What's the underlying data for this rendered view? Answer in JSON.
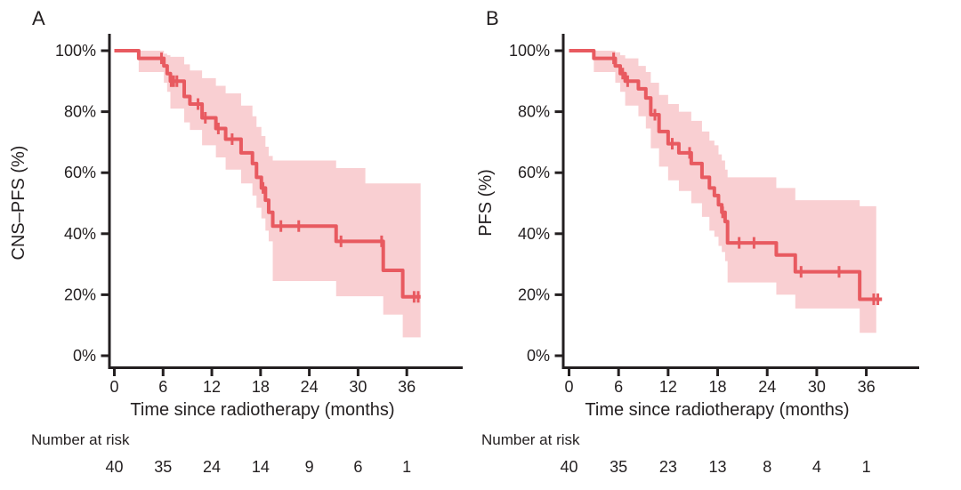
{
  "colors": {
    "curve": "#e85a60",
    "confidence_band": "#f9cfd2",
    "axis": "#231f20",
    "text": "#231f20",
    "background": "#ffffff"
  },
  "chart_data": [
    {
      "type": "line",
      "subtype": "kaplan-meier-step",
      "panel_label": "A",
      "xlabel": "Time since radiotherapy (months)",
      "ylabel": "CNS–PFS (%)",
      "xlim": [
        0,
        39
      ],
      "ylim": [
        0,
        100
      ],
      "x_ticks": [
        0,
        6,
        12,
        18,
        24,
        30,
        36
      ],
      "y_ticks": [
        100,
        80,
        60,
        40,
        20,
        0
      ],
      "y_tick_labels": [
        "100%",
        "80%",
        "60%",
        "40%",
        "20%",
        "0%"
      ],
      "grid": false,
      "legend": "none",
      "series": [
        {
          "name": "CNS-PFS",
          "color": "#e85a60",
          "end_time": 37.7,
          "steps": [
            [
              0,
              100
            ],
            [
              3,
              97.5
            ],
            [
              6.1,
              95
            ],
            [
              6.5,
              92.5
            ],
            [
              6.9,
              90
            ],
            [
              8.6,
              85
            ],
            [
              9.3,
              82.5
            ],
            [
              10.8,
              78
            ],
            [
              12.5,
              74.5
            ],
            [
              13.7,
              71
            ],
            [
              15.6,
              66.5
            ],
            [
              17,
              63
            ],
            [
              17.5,
              58.5
            ],
            [
              18.1,
              55
            ],
            [
              18.6,
              51
            ],
            [
              19,
              47
            ],
            [
              19.5,
              42.5
            ],
            [
              27.3,
              37.5
            ],
            [
              33.1,
              28
            ],
            [
              35.5,
              19.3
            ]
          ],
          "censor_marks": [
            [
              5.8,
              97.5
            ],
            [
              7,
              90
            ],
            [
              7.3,
              90
            ],
            [
              7.7,
              90
            ],
            [
              10.3,
              82.5
            ],
            [
              11.2,
              78
            ],
            [
              12.8,
              74.5
            ],
            [
              14.5,
              71
            ],
            [
              18.3,
              55
            ],
            [
              20.5,
              42.5
            ],
            [
              22.7,
              42.5
            ],
            [
              27.9,
              37.5
            ],
            [
              32.9,
              37.5
            ],
            [
              36.9,
              19.3
            ],
            [
              37.4,
              19.3
            ]
          ]
        }
      ],
      "confidence_band": {
        "color": "#f9cfd2",
        "end_time": 37.7,
        "steps": [
          [
            3,
            100,
            93
          ],
          [
            6.1,
            99,
            89.5
          ],
          [
            6.5,
            98.5,
            86.5
          ],
          [
            6.9,
            98,
            81
          ],
          [
            8.6,
            95.5,
            76.5
          ],
          [
            9.3,
            93.5,
            74
          ],
          [
            10.8,
            91,
            69
          ],
          [
            12.5,
            88.5,
            65
          ],
          [
            13.7,
            86,
            61
          ],
          [
            15.6,
            82,
            56.5
          ],
          [
            17,
            78.5,
            52.5
          ],
          [
            17.5,
            75,
            48.5
          ],
          [
            18.1,
            72,
            45
          ],
          [
            18.6,
            68.5,
            41
          ],
          [
            19,
            65.5,
            37.5
          ],
          [
            19.5,
            64,
            24.5
          ],
          [
            27.3,
            61.5,
            19.5
          ],
          [
            30.9,
            56.5,
            19.5
          ],
          [
            33.1,
            56.5,
            13.5
          ],
          [
            35.5,
            56.5,
            6
          ]
        ]
      },
      "number_at_risk": {
        "label": "Number at risk",
        "times": [
          0,
          6,
          12,
          18,
          24,
          30,
          36
        ],
        "counts": [
          40,
          35,
          24,
          14,
          9,
          6,
          1
        ]
      }
    },
    {
      "type": "line",
      "subtype": "kaplan-meier-step",
      "panel_label": "B",
      "xlabel": "Time since radiotherapy (months)",
      "ylabel": "PFS (%)",
      "xlim": [
        0,
        39
      ],
      "ylim": [
        0,
        100
      ],
      "x_ticks": [
        0,
        6,
        12,
        18,
        24,
        30,
        36
      ],
      "y_ticks": [
        100,
        80,
        60,
        40,
        20,
        0
      ],
      "y_tick_labels": [
        "100%",
        "80%",
        "60%",
        "40%",
        "20%",
        "0%"
      ],
      "grid": false,
      "legend": "none",
      "series": [
        {
          "name": "PFS",
          "color": "#e85a60",
          "end_time": 37.9,
          "steps": [
            [
              0,
              100
            ],
            [
              3,
              97.5
            ],
            [
              5.6,
              95
            ],
            [
              6.2,
              92.5
            ],
            [
              6.8,
              90
            ],
            [
              8.4,
              87.5
            ],
            [
              9.3,
              84.5
            ],
            [
              9.9,
              79
            ],
            [
              10.9,
              73.5
            ],
            [
              12,
              69.5
            ],
            [
              13.3,
              66.5
            ],
            [
              14.8,
              63
            ],
            [
              16.1,
              58.5
            ],
            [
              17,
              55
            ],
            [
              17.6,
              52.5
            ],
            [
              18.1,
              49.5
            ],
            [
              18.5,
              47
            ],
            [
              18.9,
              44
            ],
            [
              19.2,
              37
            ],
            [
              25.1,
              33
            ],
            [
              27.4,
              27.5
            ],
            [
              35.2,
              18.5
            ]
          ],
          "censor_marks": [
            [
              5.4,
              97.5
            ],
            [
              6.5,
              92.5
            ],
            [
              7.1,
              90
            ],
            [
              10.4,
              79
            ],
            [
              12.5,
              69.5
            ],
            [
              14.6,
              66.5
            ],
            [
              18.6,
              47
            ],
            [
              20.6,
              37
            ],
            [
              22.4,
              37
            ],
            [
              28.1,
              27.5
            ],
            [
              32.7,
              27.5
            ],
            [
              36.9,
              18.5
            ],
            [
              37.4,
              18.5
            ]
          ]
        }
      ],
      "confidence_band": {
        "color": "#f9cfd2",
        "end_time": 37.2,
        "steps": [
          [
            3,
            100,
            93
          ],
          [
            5.6,
            99.5,
            89.5
          ],
          [
            6.2,
            98.5,
            86.5
          ],
          [
            6.8,
            97.5,
            82
          ],
          [
            8.4,
            95,
            78.5
          ],
          [
            9.3,
            93,
            74.5
          ],
          [
            9.9,
            89.5,
            68
          ],
          [
            10.9,
            85.5,
            62
          ],
          [
            12,
            82.5,
            57.5
          ],
          [
            13.3,
            80,
            54
          ],
          [
            14.8,
            77,
            50
          ],
          [
            16.1,
            73.5,
            45.5
          ],
          [
            17,
            70.5,
            41
          ],
          [
            17.6,
            69,
            39
          ],
          [
            18.1,
            66,
            36
          ],
          [
            18.5,
            64,
            34
          ],
          [
            18.9,
            61,
            31
          ],
          [
            19.2,
            58.5,
            24
          ],
          [
            25.1,
            55,
            20
          ],
          [
            27.4,
            51,
            15.5
          ],
          [
            35.2,
            49,
            7.5
          ]
        ]
      },
      "number_at_risk": {
        "label": "Number at risk",
        "times": [
          0,
          6,
          12,
          18,
          24,
          30,
          36
        ],
        "counts": [
          40,
          35,
          23,
          13,
          8,
          4,
          1
        ]
      }
    }
  ]
}
